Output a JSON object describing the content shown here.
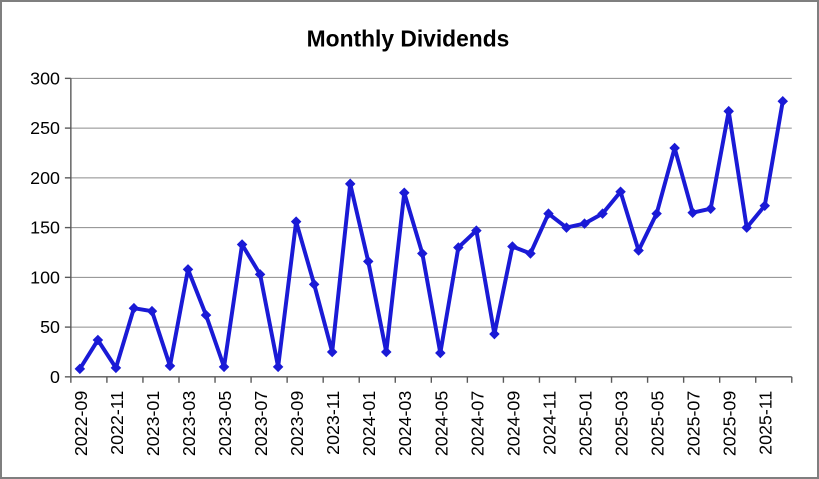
{
  "chart_data": {
    "type": "line",
    "title": "Monthly Dividends",
    "x": [
      "2022-09",
      "2022-10",
      "2022-11",
      "2022-12",
      "2023-01",
      "2023-02",
      "2023-03",
      "2023-04",
      "2023-05",
      "2023-06",
      "2023-07",
      "2023-08",
      "2023-09",
      "2023-10",
      "2023-11",
      "2023-12",
      "2024-01",
      "2024-02",
      "2024-03",
      "2024-04",
      "2024-05",
      "2024-06",
      "2024-07",
      "2024-08",
      "2024-09",
      "2024-10",
      "2024-11",
      "2024-12",
      "2025-01",
      "2025-02",
      "2025-03",
      "2025-04",
      "2025-05",
      "2025-06",
      "2025-07",
      "2025-08",
      "2025-09",
      "2025-10",
      "2025-11",
      "2025-12"
    ],
    "values": [
      8,
      37,
      9,
      69,
      66,
      11,
      108,
      62,
      10,
      133,
      103,
      10,
      156,
      93,
      25,
      194,
      116,
      25,
      185,
      124,
      24,
      130,
      147,
      43,
      131,
      124,
      164,
      150,
      154,
      164,
      186,
      127,
      164,
      230,
      165,
      169,
      267,
      150,
      172,
      277
    ],
    "x_tick_labels": [
      "2022-09",
      "2022-11",
      "2023-01",
      "2023-03",
      "2023-05",
      "2023-07",
      "2023-09",
      "2023-11",
      "2024-01",
      "2024-03",
      "2024-05",
      "2024-07",
      "2024-09",
      "2024-11",
      "2025-01",
      "2025-03",
      "2025-05",
      "2025-07",
      "2025-09",
      "2025-11"
    ],
    "x_label_every": 2,
    "xlabel": "",
    "ylabel": "",
    "ylim": [
      0,
      300
    ],
    "y_ticks": [
      0,
      50,
      100,
      150,
      200,
      250,
      300
    ],
    "grid": true,
    "legend": false,
    "marker": "diamond",
    "line_color": "#1a1ad6",
    "grid_color": "#8c8c8c",
    "axis_color": "#595959",
    "text_color": "#000000",
    "background_color": "#ffffff",
    "border_color": "#7f7f7f"
  }
}
